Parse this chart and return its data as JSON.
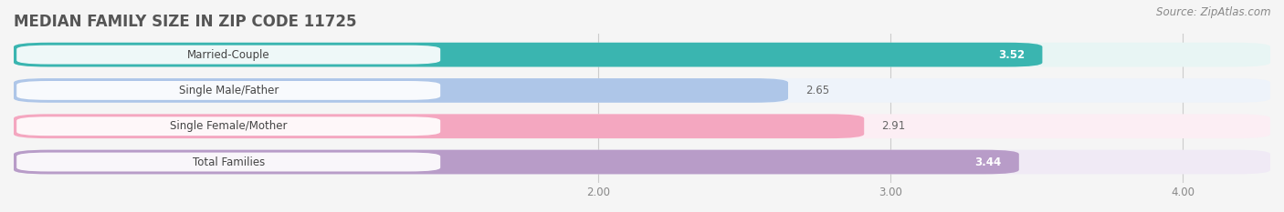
{
  "title": "MEDIAN FAMILY SIZE IN ZIP CODE 11725",
  "source": "Source: ZipAtlas.com",
  "categories": [
    "Married-Couple",
    "Single Male/Father",
    "Single Female/Mother",
    "Total Families"
  ],
  "values": [
    3.52,
    2.65,
    2.91,
    3.44
  ],
  "bar_colors": [
    "#3ab5b0",
    "#aec6e8",
    "#f4a7c0",
    "#b89cc8"
  ],
  "bg_colors": [
    "#e8f5f4",
    "#eef3fa",
    "#fceef4",
    "#f0eaf5"
  ],
  "xlim": [
    0.0,
    4.3
  ],
  "xticks": [
    2.0,
    3.0,
    4.0
  ],
  "xtick_labels": [
    "2.00",
    "3.00",
    "4.00"
  ],
  "title_fontsize": 12,
  "label_fontsize": 8.5,
  "value_fontsize": 8.5,
  "source_fontsize": 8.5,
  "background_color": "#f5f5f5"
}
